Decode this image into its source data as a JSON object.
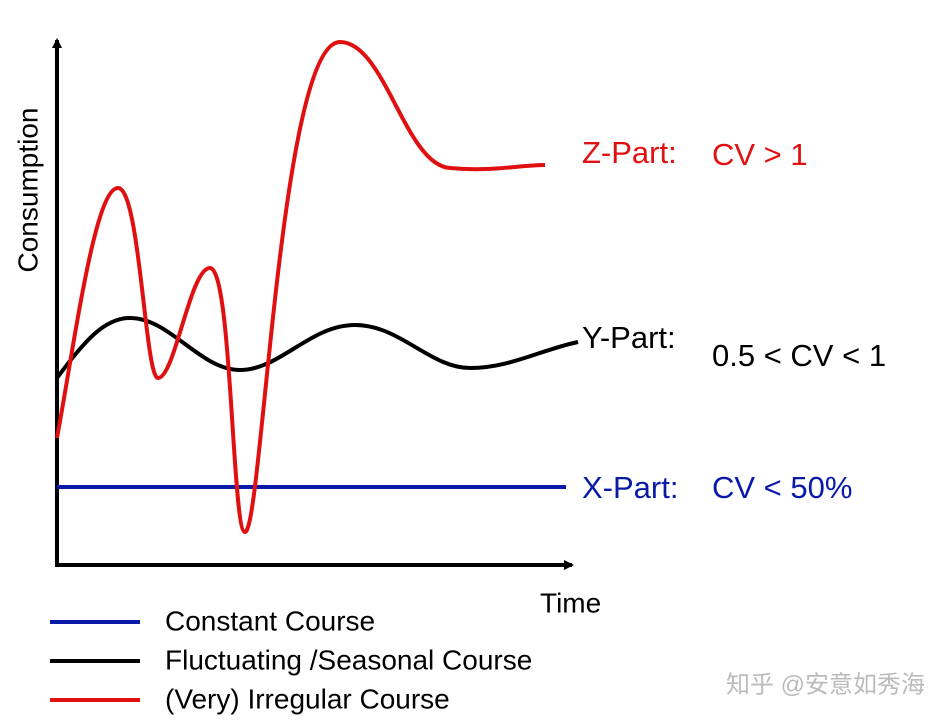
{
  "axes": {
    "y_label": "Consumption",
    "x_label": "Time"
  },
  "annotations": [
    {
      "part": "Z-Part:",
      "criterion": "CV > 1"
    },
    {
      "part": "Y-Part:",
      "criterion": "0.5 < CV < 1"
    },
    {
      "part": "X-Part:",
      "criterion": "CV < 50%"
    }
  ],
  "legend": [
    "Constant Course",
    "Fluctuating /Seasonal Course",
    "(Very) Irregular Course"
  ],
  "watermark": "知乎 @安意如秀海"
}
